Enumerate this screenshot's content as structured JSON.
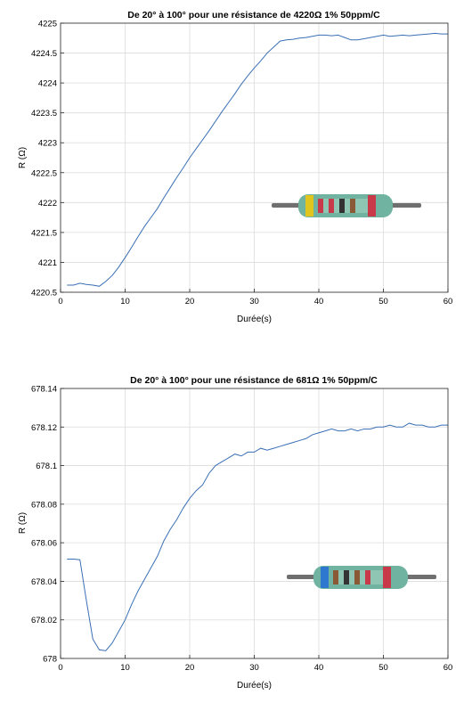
{
  "chart_data": [
    {
      "type": "line",
      "title": "De 20° à 100° pour une résistance de 4220Ω 1% 50ppm/C",
      "xlabel": "Durée(s)",
      "ylabel": "R (Ω)",
      "xlim": [
        0,
        60
      ],
      "ylim": [
        4220.5,
        4225
      ],
      "x_ticks": [
        0,
        10,
        20,
        30,
        40,
        50,
        60
      ],
      "x_tick_labels": [
        "0",
        "10",
        "20",
        "30",
        "40",
        "50",
        "60"
      ],
      "y_ticks": [
        4220.5,
        4221,
        4221.5,
        4222,
        4222.5,
        4223,
        4223.5,
        4224,
        4224.5,
        4225
      ],
      "y_tick_labels": [
        "4220.5",
        "4221",
        "4221.5",
        "4222",
        "4222.5",
        "4223",
        "4223.5",
        "4224",
        "4224.5",
        "4225"
      ],
      "grid": true,
      "line_color": "#3a6fb5",
      "resistor_bands": [
        "#e0c51f",
        "#c83a4a",
        "#c83a4a",
        "#333333",
        "#8a5a36",
        "#c83a4a"
      ],
      "series": [
        {
          "x": [
            1,
            2,
            3,
            4,
            5,
            6,
            7,
            8,
            9,
            10,
            11,
            12,
            13,
            14,
            15,
            16,
            17,
            18,
            19,
            20,
            21,
            22,
            23,
            24,
            25,
            26,
            27,
            28,
            29,
            30,
            31,
            32,
            33,
            34,
            35,
            36,
            37,
            38,
            39,
            40,
            41,
            42,
            43,
            44,
            45,
            46,
            47,
            48,
            49,
            50,
            51,
            52,
            53,
            54,
            55,
            56,
            57,
            58,
            59,
            60
          ],
          "y": [
            4220.62,
            4220.62,
            4220.65,
            4220.63,
            4220.62,
            4220.6,
            4220.68,
            4220.78,
            4220.92,
            4221.08,
            4221.25,
            4221.43,
            4221.6,
            4221.75,
            4221.9,
            4222.08,
            4222.25,
            4222.42,
            4222.58,
            4222.75,
            4222.9,
            4223.05,
            4223.2,
            4223.36,
            4223.52,
            4223.67,
            4223.82,
            4223.98,
            4224.12,
            4224.25,
            4224.37,
            4224.5,
            4224.6,
            4224.7,
            4224.72,
            4224.73,
            4224.75,
            4224.76,
            4224.78,
            4224.8,
            4224.8,
            4224.79,
            4224.8,
            4224.76,
            4224.72,
            4224.72,
            4224.74,
            4224.76,
            4224.78,
            4224.8,
            4224.78,
            4224.79,
            4224.8,
            4224.79,
            4224.8,
            4224.81,
            4224.82,
            4224.83,
            4224.82,
            4224.82
          ]
        }
      ]
    },
    {
      "type": "line",
      "title": "De 20° à 100° pour une résistance de 681Ω 1% 50ppm/C",
      "xlabel": "Durée(s)",
      "ylabel": "R (Ω)",
      "xlim": [
        0,
        60
      ],
      "ylim": [
        678,
        678.14
      ],
      "x_ticks": [
        0,
        10,
        20,
        30,
        40,
        50,
        60
      ],
      "x_tick_labels": [
        "0",
        "10",
        "20",
        "30",
        "40",
        "50",
        "60"
      ],
      "y_ticks": [
        678,
        678.02,
        678.04,
        678.06,
        678.08,
        678.1,
        678.12,
        678.14
      ],
      "y_tick_labels": [
        "678",
        "678.02",
        "678.04",
        "678.06",
        "678.08",
        "678.1",
        "678.12",
        "678.14"
      ],
      "grid": true,
      "line_color": "#3a6fb5",
      "resistor_bands": [
        "#2f78d0",
        "#8a5a36",
        "#333333",
        "#8a5a36",
        "#c83a4a",
        "#c83a4a"
      ],
      "series": [
        {
          "x": [
            1,
            2,
            3,
            4,
            5,
            6,
            7,
            8,
            9,
            10,
            11,
            12,
            13,
            14,
            15,
            16,
            17,
            18,
            19,
            20,
            21,
            22,
            23,
            24,
            25,
            26,
            27,
            28,
            29,
            30,
            31,
            32,
            33,
            34,
            35,
            36,
            37,
            38,
            39,
            40,
            41,
            42,
            43,
            44,
            45,
            46,
            47,
            48,
            49,
            50,
            51,
            52,
            53,
            54,
            55,
            56,
            57,
            58,
            59,
            60
          ],
          "y": [
            678.0515,
            678.0515,
            678.0512,
            678.03,
            678.01,
            678.0045,
            678.004,
            678.008,
            678.014,
            678.02,
            678.028,
            678.035,
            678.041,
            678.047,
            678.053,
            678.061,
            678.067,
            678.072,
            678.078,
            678.083,
            678.087,
            678.09,
            678.096,
            678.1,
            678.102,
            678.104,
            678.106,
            678.105,
            678.107,
            678.107,
            678.109,
            678.108,
            678.109,
            678.11,
            678.111,
            678.112,
            678.113,
            678.114,
            678.116,
            678.117,
            678.118,
            678.119,
            678.118,
            678.118,
            678.119,
            678.118,
            678.119,
            678.119,
            678.12,
            678.12,
            678.121,
            678.12,
            678.12,
            678.122,
            678.121,
            678.121,
            678.12,
            678.12,
            678.121,
            678.121
          ]
        }
      ]
    }
  ]
}
